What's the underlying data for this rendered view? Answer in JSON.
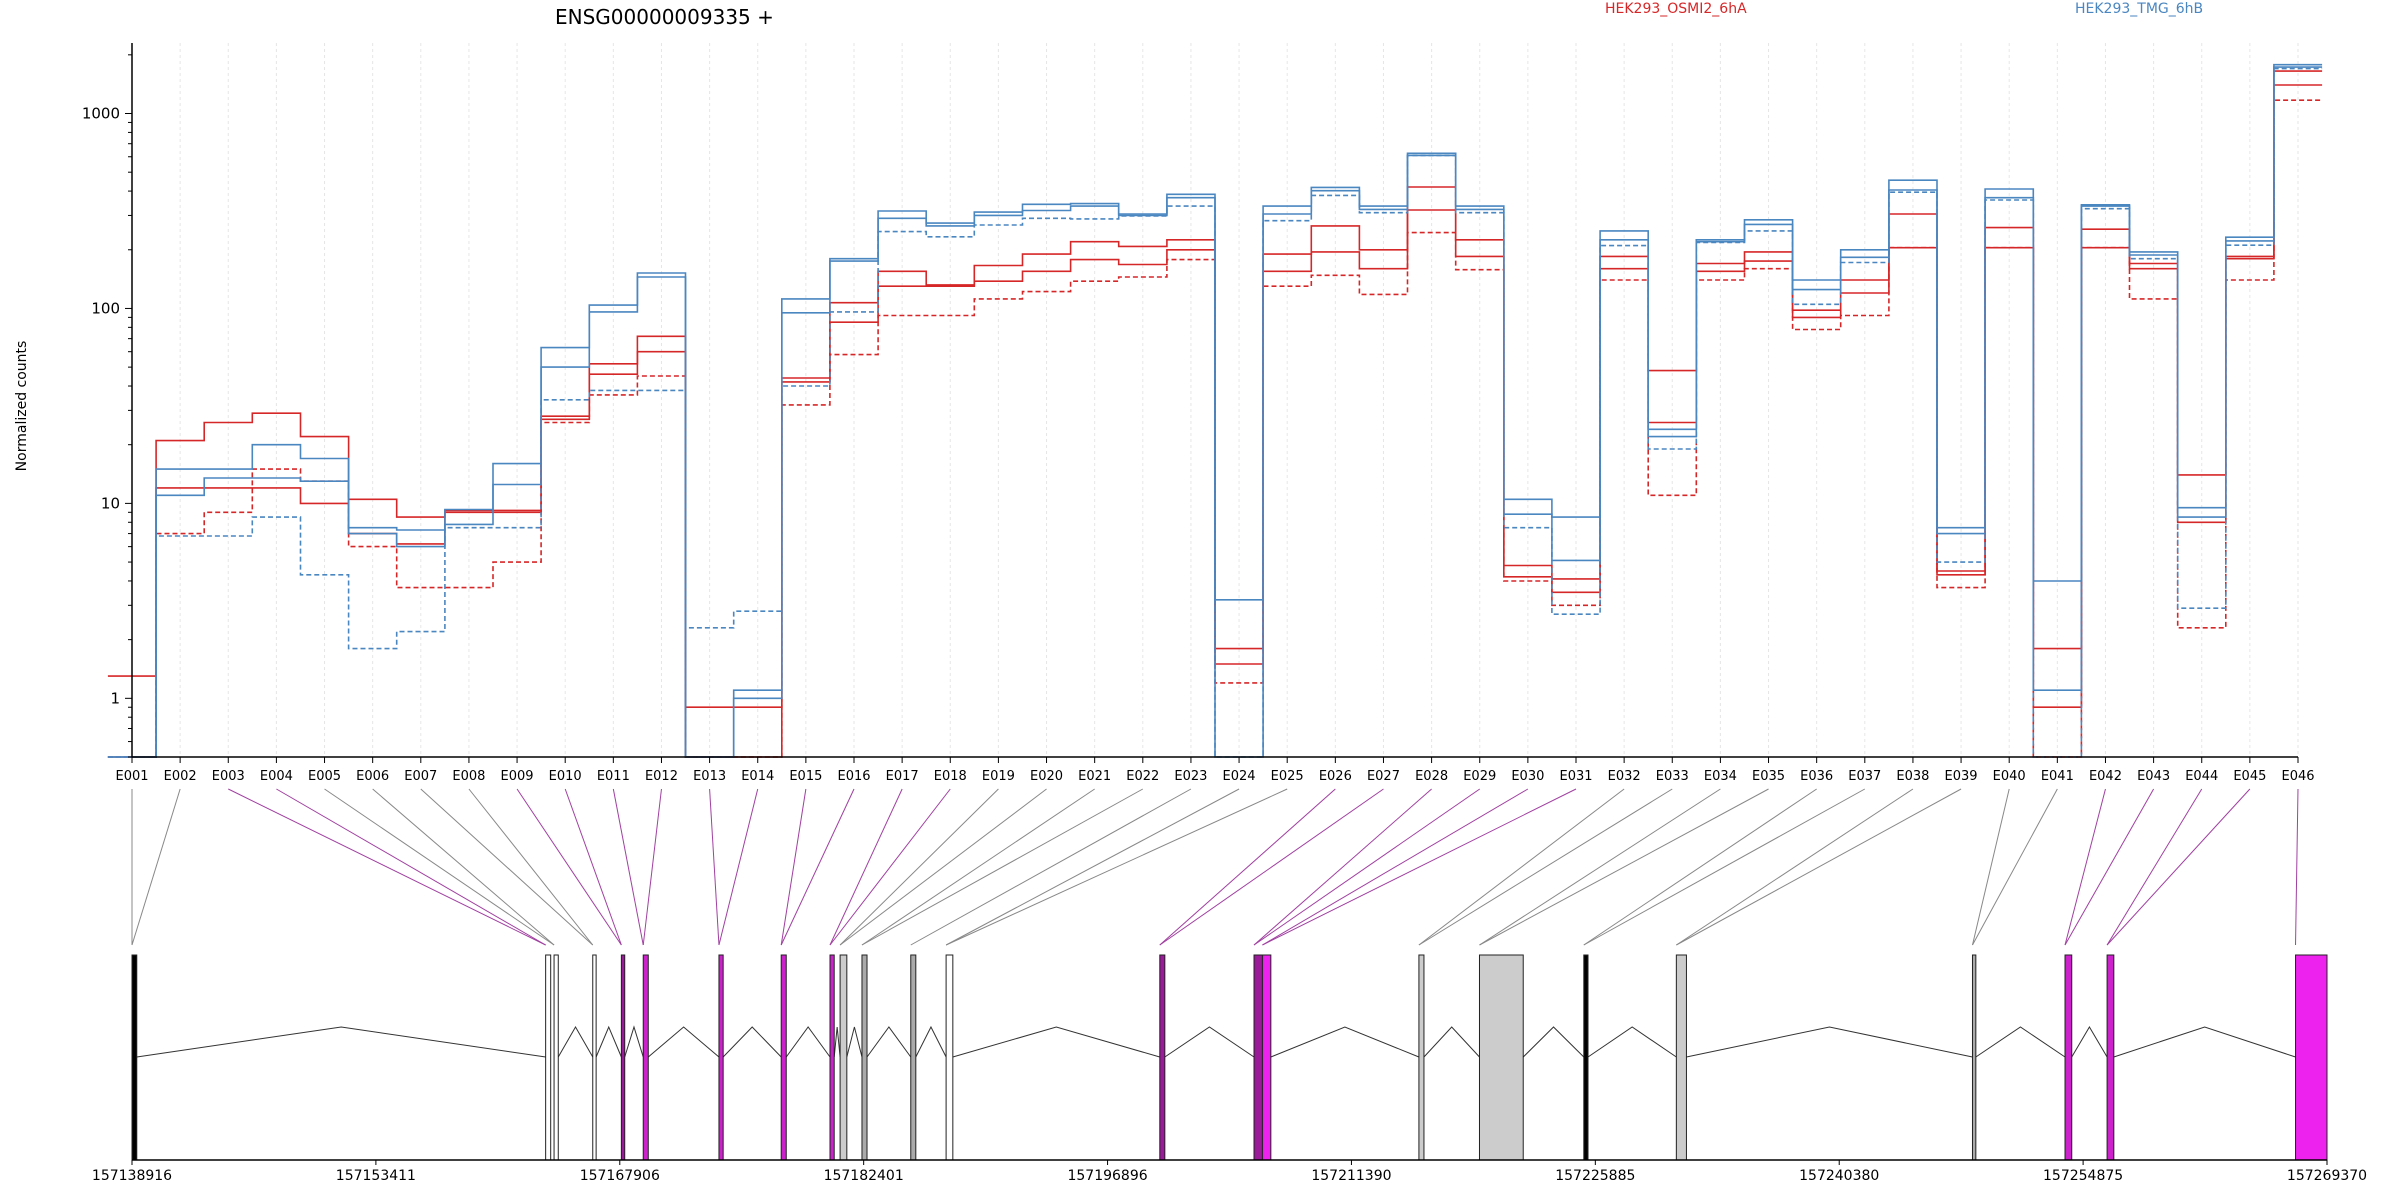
{
  "chart_data": {
    "type": "line",
    "title": "ENSG00000009335 +",
    "ylabel": "Normalized counts",
    "xlabel": "",
    "yscale": "log",
    "ylim": [
      0.5,
      2300
    ],
    "grid": "x",
    "legend": {
      "placement": "top",
      "entries": [
        {
          "name": "HEK293_OSMI2_6hA",
          "color": "#d62728"
        },
        {
          "name": "HEK293_TMG_6hB",
          "color": "#4a86c0"
        }
      ]
    },
    "yticks": [
      {
        "value": 1,
        "label": "1"
      },
      {
        "value": 10,
        "label": "10"
      },
      {
        "value": 100,
        "label": "100"
      },
      {
        "value": 1000,
        "label": "1000"
      }
    ],
    "categories": [
      "E001",
      "E002",
      "E003",
      "E004",
      "E005",
      "E006",
      "E007",
      "E008",
      "E009",
      "E010",
      "E011",
      "E012",
      "E013",
      "E014",
      "E015",
      "E016",
      "E017",
      "E018",
      "E019",
      "E020",
      "E021",
      "E022",
      "E023",
      "E024",
      "E025",
      "E026",
      "E027",
      "E028",
      "E029",
      "E030",
      "E031",
      "E032",
      "E033",
      "E034",
      "E035",
      "E036",
      "E037",
      "E038",
      "E039",
      "E040",
      "E041",
      "E042",
      "E043",
      "E044",
      "E045",
      "E046"
    ],
    "series": [
      {
        "group": "red",
        "dash": false,
        "values": [
          1.3,
          21,
          26,
          29,
          22,
          10.5,
          8.5,
          9.2,
          9.2,
          28,
          52,
          72,
          0.9,
          0.9,
          44,
          107,
          155,
          132,
          166,
          190,
          220,
          208,
          225,
          1.8,
          190,
          265,
          200,
          420,
          225,
          4.8,
          4.1,
          185,
          48,
          170,
          195,
          98,
          140,
          305,
          4.5,
          260,
          1.8,
          255,
          170,
          14,
          185,
          1650
        ]
      },
      {
        "group": "red",
        "dash": false,
        "values": [
          0.5,
          12,
          12,
          12,
          10,
          7,
          6.2,
          9,
          9,
          27,
          46,
          60,
          0.5,
          0.5,
          42,
          85,
          130,
          130,
          138,
          155,
          178,
          168,
          200,
          1.5,
          155,
          195,
          160,
          320,
          185,
          4.2,
          3.5,
          160,
          26,
          155,
          175,
          90,
          120,
          205,
          4.3,
          205,
          0.9,
          205,
          160,
          8,
          180,
          1400
        ]
      },
      {
        "group": "red",
        "dash": true,
        "values": [
          0.5,
          7,
          9,
          15,
          13,
          6,
          3.7,
          3.7,
          5,
          26,
          36,
          45,
          0.5,
          0.5,
          32,
          58,
          92,
          92,
          112,
          122,
          138,
          145,
          178,
          1.2,
          130,
          148,
          118,
          245,
          158,
          4,
          3,
          140,
          11,
          140,
          160,
          78,
          92,
          205,
          3.7,
          205,
          0.5,
          205,
          112,
          2.3,
          140,
          1170
        ]
      },
      {
        "group": "blue",
        "dash": false,
        "values": [
          0.5,
          15,
          15,
          20,
          17,
          7.5,
          7.3,
          9.3,
          16,
          63,
          104,
          152,
          0.5,
          1.1,
          112,
          180,
          316,
          274,
          312,
          342,
          345,
          305,
          385,
          3.2,
          335,
          418,
          335,
          625,
          335,
          10.5,
          8.5,
          250,
          24,
          225,
          285,
          140,
          200,
          455,
          7.5,
          410,
          4,
          340,
          195,
          9.5,
          232,
          1780
        ]
      },
      {
        "group": "blue",
        "dash": false,
        "values": [
          0.5,
          11,
          13.5,
          13.5,
          13,
          7,
          6,
          7.8,
          12.5,
          50,
          96,
          145,
          0.5,
          1,
          95,
          175,
          290,
          265,
          300,
          318,
          335,
          300,
          370,
          0.5,
          305,
          402,
          322,
          610,
          322,
          8.8,
          5.1,
          225,
          22,
          220,
          270,
          125,
          183,
          405,
          7,
          370,
          1.1,
          335,
          188,
          8.5,
          222,
          1730
        ]
      },
      {
        "group": "blue",
        "dash": true,
        "values": [
          0.5,
          6.8,
          6.8,
          8.5,
          4.3,
          1.8,
          2.2,
          7.5,
          7.5,
          34,
          38,
          38,
          2.3,
          2.8,
          40,
          96,
          248,
          233,
          268,
          290,
          288,
          298,
          335,
          0.5,
          282,
          380,
          310,
          610,
          310,
          7.5,
          2.7,
          210,
          19,
          218,
          250,
          105,
          172,
          395,
          5,
          360,
          0.5,
          325,
          180,
          2.9,
          211,
          1700
        ]
      }
    ],
    "exon_tick_labels": [
      "E001",
      "E002",
      "E003",
      "E004",
      "E005",
      "E006",
      "E007",
      "E008",
      "E009",
      "E010",
      "E011",
      "E012",
      "E013",
      "E014",
      "E015",
      "E016",
      "E017",
      "E018",
      "E019",
      "E020",
      "E021",
      "E022",
      "E023",
      "E024",
      "E025",
      "E026",
      "E027",
      "E028",
      "E029",
      "E030",
      "E031",
      "E032",
      "E033",
      "E034",
      "E035",
      "E036",
      "E037",
      "E038",
      "E039",
      "E040",
      "E041",
      "E042",
      "E043",
      "E044",
      "E045",
      "E046"
    ],
    "gene_model": {
      "axis_range": [
        157138916,
        157269370
      ],
      "axis_ticks": [
        "157138916",
        "157153411",
        "157167906",
        "157182401",
        "157196896",
        "157211390",
        "157225885",
        "157240380",
        "157254875",
        "157269370"
      ],
      "exons": [
        {
          "start": 157138916,
          "end": 157139200,
          "color": "#000000",
          "link": "#888888"
        },
        {
          "start": 157163500,
          "end": 157163800,
          "color": "#ffffff",
          "link": "#a040a0"
        },
        {
          "start": 157164000,
          "end": 157164250,
          "color": "#ffffff",
          "link": "#888888"
        },
        {
          "start": 157166300,
          "end": 157166500,
          "color": "#ffffff",
          "link": "#888888"
        },
        {
          "start": 157168000,
          "end": 157168200,
          "color": "#9a1a9a",
          "link": "#a040a0"
        },
        {
          "start": 157169300,
          "end": 157169600,
          "color": "#cc22cc",
          "link": "#a040a0"
        },
        {
          "start": 157173800,
          "end": 157174050,
          "color": "#cc22cc",
          "link": "#a040a0"
        },
        {
          "start": 157177500,
          "end": 157177800,
          "color": "#cc22cc",
          "link": "#a040a0"
        },
        {
          "start": 157180400,
          "end": 157180650,
          "color": "#cc22cc",
          "link": "#a040a0"
        },
        {
          "start": 157181000,
          "end": 157181400,
          "color": "#cccccc",
          "link": "#888888"
        },
        {
          "start": 157182300,
          "end": 157182600,
          "color": "#aaaaaa",
          "link": "#888888"
        },
        {
          "start": 157185200,
          "end": 157185500,
          "color": "#aaaaaa",
          "link": "#888888"
        },
        {
          "start": 157187300,
          "end": 157187700,
          "color": "#ffffff",
          "link": "#888888"
        },
        {
          "start": 157200000,
          "end": 157200300,
          "color": "#9a1a9a",
          "link": "#a040a0"
        },
        {
          "start": 157205600,
          "end": 157206100,
          "color": "#9a1a9a",
          "link": "#a040a0"
        },
        {
          "start": 157206100,
          "end": 157206600,
          "color": "#ee22ee",
          "link": "#a040a0"
        },
        {
          "start": 157215400,
          "end": 157215700,
          "color": "#cccccc",
          "link": "#888888"
        },
        {
          "start": 157219000,
          "end": 157221600,
          "color": "#cccccc",
          "link": "#888888"
        },
        {
          "start": 157225200,
          "end": 157225450,
          "color": "#000000",
          "link": "#888888"
        },
        {
          "start": 157230700,
          "end": 157231300,
          "color": "#cccccc",
          "link": "#888888"
        },
        {
          "start": 157248300,
          "end": 157248500,
          "color": "#aaaaaa",
          "link": "#888888"
        },
        {
          "start": 157253800,
          "end": 157254200,
          "color": "#cc22cc",
          "link": "#a040a0"
        },
        {
          "start": 157256300,
          "end": 157256700,
          "color": "#cc22cc",
          "link": "#a040a0"
        },
        {
          "start": 157267500,
          "end": 157269370,
          "color": "#ee22ee",
          "link": "#a040a0"
        }
      ]
    }
  }
}
